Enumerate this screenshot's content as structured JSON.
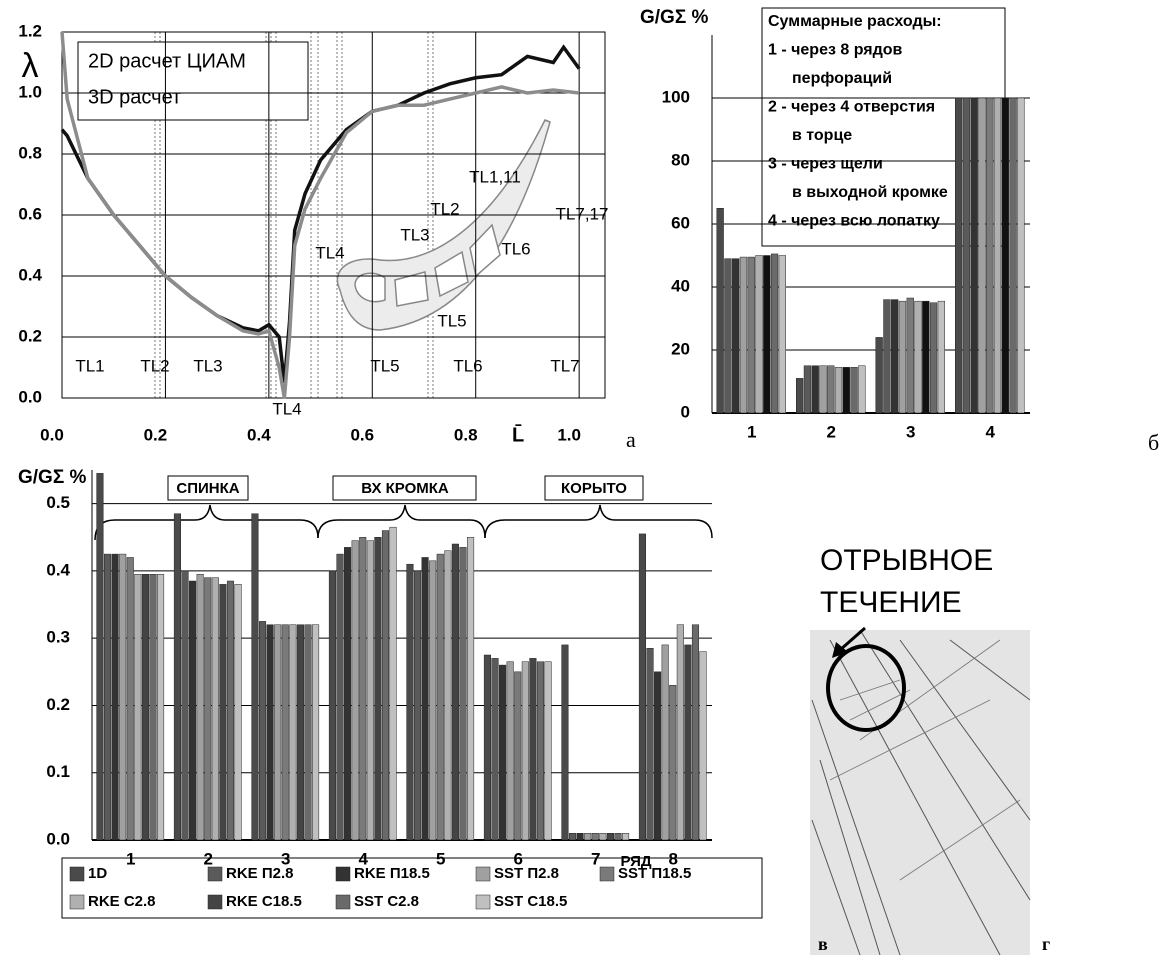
{
  "chart_data": [
    {
      "type": "line",
      "panel": "а",
      "ylabel": "λ",
      "xlabel": "L̄",
      "xlim": [
        0,
        1.05
      ],
      "ylim": [
        0,
        1.2
      ],
      "xticks": [
        {
          "value": 0,
          "label": "0.0"
        },
        0.2,
        0.4,
        0.6,
        0.8,
        {
          "value": 1,
          "label": "1.0"
        }
      ],
      "yticks": [
        {
          "value": 0,
          "label": "0.0"
        },
        0.2,
        0.4,
        0.6,
        0.8,
        {
          "value": 1,
          "label": "1.0"
        },
        1.2
      ],
      "grid": true,
      "legend": "upper left",
      "series": [
        {
          "name": "2D расчет ЦИАМ",
          "color": "#111111",
          "x": [
            0,
            0.01,
            0.05,
            0.1,
            0.15,
            0.2,
            0.25,
            0.3,
            0.35,
            0.38,
            0.4,
            0.42,
            0.43,
            0.44,
            0.45,
            0.47,
            0.5,
            0.55,
            0.6,
            0.65,
            0.7,
            0.75,
            0.8,
            0.85,
            0.9,
            0.95,
            0.97,
            1.0
          ],
          "values": [
            0.88,
            0.86,
            0.72,
            0.6,
            0.5,
            0.4,
            0.33,
            0.27,
            0.23,
            0.22,
            0.24,
            0.2,
            0.05,
            0.25,
            0.55,
            0.67,
            0.78,
            0.88,
            0.94,
            0.96,
            1.0,
            1.03,
            1.05,
            1.06,
            1.12,
            1.1,
            1.15,
            1.08
          ]
        },
        {
          "name": "3D расчет",
          "color": "#8c8c8c",
          "x": [
            0,
            0.01,
            0.05,
            0.1,
            0.15,
            0.2,
            0.25,
            0.3,
            0.35,
            0.38,
            0.4,
            0.42,
            0.43,
            0.44,
            0.45,
            0.47,
            0.5,
            0.55,
            0.6,
            0.65,
            0.7,
            0.75,
            0.8,
            0.85,
            0.9,
            0.95,
            1.0
          ],
          "values": [
            1.2,
            0.98,
            0.72,
            0.6,
            0.5,
            0.4,
            0.33,
            0.27,
            0.22,
            0.21,
            0.22,
            0.1,
            0.0,
            0.2,
            0.5,
            0.62,
            0.72,
            0.87,
            0.94,
            0.96,
            0.96,
            0.98,
            1.0,
            1.02,
            1.0,
            1.01,
            1.0
          ]
        }
      ],
      "annotations": [
        "TL1",
        "TL2",
        "TL3",
        "TL4",
        "TL5",
        "TL6",
        "TL7",
        "TL1,11",
        "TL7,17",
        "TL2",
        "TL3",
        "TL4",
        "TL6",
        "TL5"
      ]
    },
    {
      "type": "bar",
      "panel": "б",
      "ylabel": "G/GΣ %",
      "categories": [
        "1",
        "2",
        "3",
        "4"
      ],
      "ylim": [
        0,
        120
      ],
      "yticks": [
        0,
        20,
        40,
        60,
        80,
        100
      ],
      "grid": true,
      "notes": [
        "Суммарные расходы:",
        "1 - через 8 рядов",
        "перфораций",
        "2 - через 4 отверстия",
        "в торце",
        "3 - через щели",
        "в выходной кромке",
        "4 - через всю лопатку"
      ],
      "series": [
        {
          "color": "#4a4a4a",
          "values": [
            65,
            11,
            24,
            100
          ]
        },
        {
          "color": "#5a5a5a",
          "values": [
            49,
            15,
            36,
            100
          ]
        },
        {
          "color": "#333333",
          "values": [
            49,
            15,
            36,
            100
          ]
        },
        {
          "color": "#a0a0a0",
          "values": [
            49.5,
            15,
            35.5,
            100
          ]
        },
        {
          "color": "#7a7a7a",
          "values": [
            49.5,
            15,
            36.5,
            100
          ]
        },
        {
          "color": "#b0b0b0",
          "values": [
            50,
            14.5,
            35.5,
            100
          ]
        },
        {
          "color": "#111111",
          "values": [
            50,
            14.5,
            35.5,
            100
          ]
        },
        {
          "color": "#6a6a6a",
          "values": [
            50.5,
            14.5,
            35,
            100
          ]
        },
        {
          "color": "#c0c0c0",
          "values": [
            50,
            15,
            35.5,
            100
          ]
        }
      ]
    },
    {
      "type": "bar",
      "ylabel": "G/GΣ %",
      "xlabel": "РЯД",
      "categories": [
        "1",
        "2",
        "3",
        "4",
        "5",
        "6",
        "7",
        "8"
      ],
      "ylim": [
        0,
        0.55
      ],
      "yticks": [
        {
          "value": 0,
          "label": "0.0"
        },
        0.1,
        0.2,
        0.3,
        0.4,
        0.5
      ],
      "grid": true,
      "legend": "bottom",
      "annotations": [
        "СПИНКА",
        "ВХ КРОМКА",
        "КОРЫТО"
      ],
      "series": [
        {
          "name": "1D",
          "color": "#4a4a4a",
          "values": [
            0.545,
            0.485,
            0.485,
            0.4,
            0.41,
            0.275,
            0.29,
            0.455
          ]
        },
        {
          "name": "RKE П2.8",
          "color": "#5a5a5a",
          "values": [
            0.425,
            0.4,
            0.325,
            0.425,
            0.4,
            0.27,
            0.01,
            0.285
          ]
        },
        {
          "name": "RKE П18.5",
          "color": "#333333",
          "values": [
            0.425,
            0.385,
            0.32,
            0.435,
            0.42,
            0.26,
            0.01,
            0.25
          ]
        },
        {
          "name": "SST П2.8",
          "color": "#a0a0a0",
          "values": [
            0.425,
            0.395,
            0.32,
            0.445,
            0.415,
            0.265,
            0.01,
            0.29
          ]
        },
        {
          "name": "SST П18.5",
          "color": "#7a7a7a",
          "values": [
            0.42,
            0.39,
            0.32,
            0.45,
            0.425,
            0.25,
            0.01,
            0.23
          ]
        },
        {
          "name": "RKE C2.8",
          "color": "#b0b0b0",
          "values": [
            0.395,
            0.39,
            0.32,
            0.445,
            0.43,
            0.265,
            0.01,
            0.32
          ]
        },
        {
          "name": "RKE C18.5",
          "color": "#444444",
          "values": [
            0.395,
            0.38,
            0.32,
            0.45,
            0.44,
            0.27,
            0.01,
            0.29
          ]
        },
        {
          "name": "SST C2.8",
          "color": "#6a6a6a",
          "values": [
            0.395,
            0.385,
            0.32,
            0.46,
            0.435,
            0.265,
            0.01,
            0.32
          ]
        },
        {
          "name": "SST C18.5",
          "color": "#c0c0c0",
          "values": [
            0.395,
            0.38,
            0.32,
            0.465,
            0.45,
            0.265,
            0.01,
            0.28
          ]
        }
      ]
    }
  ],
  "figure": {
    "title_lines": [
      "ОТРЫВНОЕ",
      "ТЕЧЕНИЕ"
    ],
    "labels": [
      "в",
      "г"
    ]
  }
}
